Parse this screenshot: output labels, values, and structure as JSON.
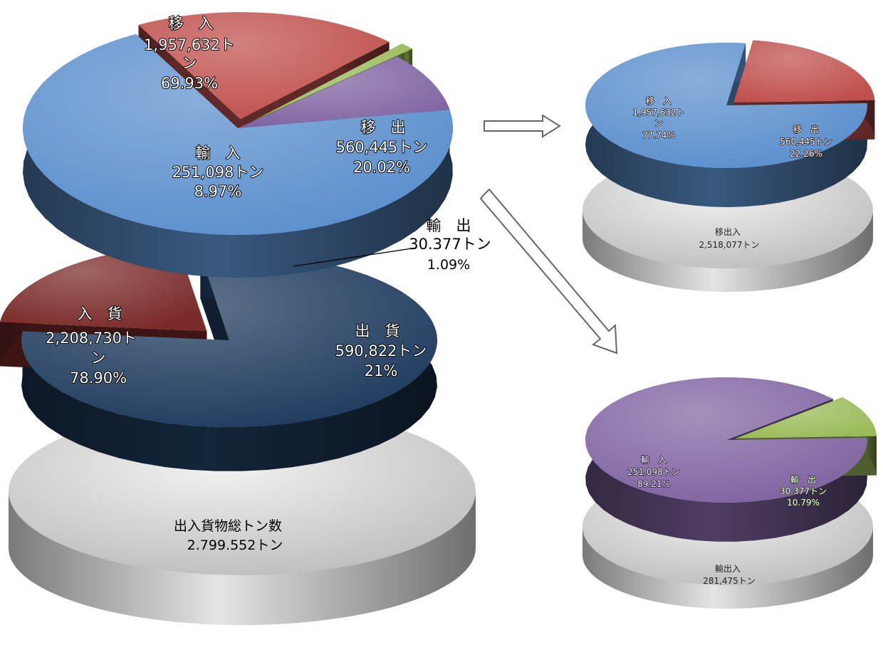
{
  "chart_data": [
    {
      "type": "pie",
      "title": "",
      "slices": [
        {
          "label": "入　貨",
          "value": 2208730,
          "value_text": "2,208,730トン",
          "percent_text": "78.90%",
          "color": "#1f3b5e"
        },
        {
          "label": "出　貨",
          "value": 590822,
          "value_text": "590,822トン",
          "percent_text": "21%",
          "color": "#7a2a28"
        }
      ],
      "total": {
        "label": "出入貨物総トン数",
        "value": 2799552,
        "value_text": "2.799.552トン"
      }
    },
    {
      "type": "pie",
      "title": "",
      "slices": [
        {
          "label": "移　入",
          "value": 1957632,
          "value_text": "1,957,632トン",
          "percent_text": "69.93%",
          "color": "#5b8fcd"
        },
        {
          "label": "移　出",
          "value": 560445,
          "value_text": "560,445トン",
          "percent_text": "20.02%",
          "color": "#c0504d"
        },
        {
          "label": "輸　出",
          "value": 30377,
          "value_text": "30.377トン",
          "percent_text": "1.09%",
          "color": "#9bbb59"
        },
        {
          "label": "輸　入",
          "value": 251098,
          "value_text": "251,098トン",
          "percent_text": "8.97%",
          "color": "#8064a2"
        }
      ]
    },
    {
      "type": "pie",
      "title": "",
      "slices": [
        {
          "label": "移　入",
          "value": 1957632,
          "value_text": "1,957,632トン",
          "percent_text": "77.74%",
          "color": "#5b8fcd"
        },
        {
          "label": "移　出",
          "value": 560445,
          "value_text": "560,445トン",
          "percent_text": "22.26%",
          "color": "#c0504d"
        }
      ],
      "total": {
        "label": "移出入",
        "value": 2518077,
        "value_text": "2,518,077トン"
      }
    },
    {
      "type": "pie",
      "title": "",
      "slices": [
        {
          "label": "輸　入",
          "value": 251098,
          "value_text": "251,098トン",
          "percent_text": "89.21%",
          "color": "#8064a2"
        },
        {
          "label": "輸　出",
          "value": 30377,
          "value_text": "30,377トン",
          "percent_text": "10.79%",
          "color": "#9bbb59"
        }
      ],
      "total": {
        "label": "輸出入",
        "value": 281475,
        "value_text": "281,475トン"
      }
    }
  ],
  "colors": {
    "base_gray": "#c9c9c9"
  }
}
